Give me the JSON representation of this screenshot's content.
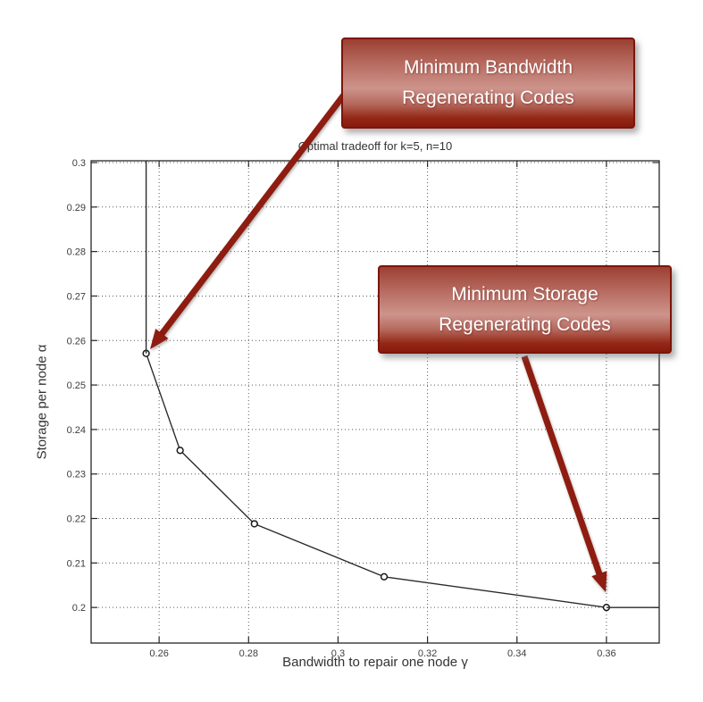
{
  "page": {
    "background": "#ffffff"
  },
  "chart_data": {
    "type": "line",
    "title": "Optimal tradeoff for k=5, n=10",
    "xlabel": "Bandwidth to repair one node γ",
    "ylabel": "Storage per node α",
    "xlim": [
      0.2448,
      0.3718
    ],
    "ylim": [
      0.192,
      0.3004
    ],
    "xticks": [
      0.26,
      0.28,
      0.3,
      0.32,
      0.34,
      0.36
    ],
    "yticks": [
      0.2,
      0.21,
      0.22,
      0.23,
      0.24,
      0.25,
      0.26,
      0.27,
      0.28,
      0.29,
      0.3
    ],
    "grid": true,
    "legend": null,
    "series": [
      {
        "name": "tradeoff-curve",
        "marker": "o",
        "points": [
          [
            0.2571,
            0.2571
          ],
          [
            0.2647,
            0.2353
          ],
          [
            0.2813,
            0.2188
          ],
          [
            0.3103,
            0.2069
          ],
          [
            0.36,
            0.2
          ]
        ]
      },
      {
        "name": "mbr-vertical-segment",
        "marker": null,
        "points": [
          [
            0.2571,
            0.3004
          ],
          [
            0.2571,
            0.2571
          ]
        ]
      },
      {
        "name": "msr-horizontal-segment",
        "marker": null,
        "points": [
          [
            0.36,
            0.2
          ],
          [
            0.3718,
            0.2
          ]
        ]
      }
    ]
  },
  "annotations": [
    {
      "id": "mbr",
      "line1": "Minimum Bandwidth",
      "line2": "Regenerating Codes",
      "target_point": [
        0.2571,
        0.2571
      ],
      "arrow": {
        "from": [
          389,
          101
        ],
        "to": [
          168,
          391
        ]
      }
    },
    {
      "id": "msr",
      "line1": "Minimum Storage",
      "line2": "Regenerating Codes",
      "target_point": [
        0.36,
        0.2
      ],
      "arrow": {
        "from": [
          587,
          399
        ],
        "to": [
          678,
          663
        ]
      }
    }
  ],
  "colors": {
    "curve": "#2b2b2b",
    "axis": "#262626",
    "grid_dots": "#555555",
    "tick_label": "#3d3d3d",
    "arrow": "#8e1c10",
    "callout_border": "#7c150a",
    "callout_gradient_top": "#9c4033",
    "callout_gradient_mid": "#cd948c",
    "callout_gradient_bottom": "#881a0d",
    "callout_text": "#ffffff"
  }
}
